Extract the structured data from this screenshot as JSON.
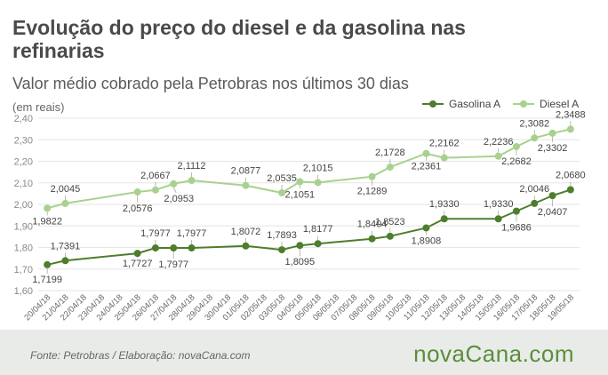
{
  "header": {
    "title": "Evolução do preço do diesel e da gasolina nas refinarias",
    "subtitle": "Valor médio cobrado pela Petrobras nos últimos 30 dias",
    "unit": "(em reais)"
  },
  "colors": {
    "gasolina": "#4e7d2c",
    "diesel": "#a9d18e",
    "grid": "#e6e6e6",
    "text": "#444444"
  },
  "chart_data": {
    "type": "line",
    "ylim": [
      1.6,
      2.4
    ],
    "yticks": [
      "1,60",
      "1,70",
      "1,80",
      "1,90",
      "2,00",
      "2,10",
      "2,20",
      "2,30",
      "2,40"
    ],
    "categories": [
      "20/04/18",
      "21/04/18",
      "22/04/18",
      "23/04/18",
      "24/04/18",
      "25/04/18",
      "26/04/18",
      "27/04/18",
      "28/04/18",
      "29/04/18",
      "30/04/18",
      "01/05/18",
      "02/05/18",
      "03/05/18",
      "04/05/18",
      "05/05/18",
      "06/05/18",
      "07/05/18",
      "08/05/18",
      "09/05/18",
      "10/05/18",
      "11/05/18",
      "12/05/18",
      "13/05/18",
      "14/05/18",
      "15/05/18",
      "16/05/18",
      "17/05/18",
      "18/05/18",
      "19/05/18"
    ],
    "legend_position": "top-right",
    "grid": true,
    "series": [
      {
        "name": "Gasolina A",
        "points": [
          {
            "x": "20/04/18",
            "y": 1.7199,
            "label": "1,7199"
          },
          {
            "x": "21/04/18",
            "y": 1.7391,
            "label": "1,7391"
          },
          {
            "x": "25/04/18",
            "y": 1.7727,
            "label": "1,7727"
          },
          {
            "x": "26/04/18",
            "y": 1.7977,
            "label": "1,7977"
          },
          {
            "x": "27/04/18",
            "y": 1.7977,
            "label": "1,7977"
          },
          {
            "x": "28/04/18",
            "y": 1.7977,
            "label": "1,7977"
          },
          {
            "x": "01/05/18",
            "y": 1.8072,
            "label": "1,8072"
          },
          {
            "x": "03/05/18",
            "y": 1.7893,
            "label": "1,7893"
          },
          {
            "x": "04/05/18",
            "y": 1.8095,
            "label": "1,8095"
          },
          {
            "x": "05/05/18",
            "y": 1.8177,
            "label": "1,8177"
          },
          {
            "x": "08/05/18",
            "y": 1.8404,
            "label": "1,8404"
          },
          {
            "x": "09/05/18",
            "y": 1.8523,
            "label": "1,8523"
          },
          {
            "x": "11/05/18",
            "y": 1.8908,
            "label": "1,8908"
          },
          {
            "x": "12/05/18",
            "y": 1.933,
            "label": "1,9330"
          },
          {
            "x": "15/05/18",
            "y": 1.933,
            "label": "1,9330"
          },
          {
            "x": "16/05/18",
            "y": 1.9686,
            "label": "1,9686"
          },
          {
            "x": "17/05/18",
            "y": 2.0046,
            "label": "2,0046"
          },
          {
            "x": "18/05/18",
            "y": 2.0407,
            "label": "2,0407"
          },
          {
            "x": "19/05/18",
            "y": 2.068,
            "label": "2,0680"
          }
        ]
      },
      {
        "name": "Diesel A",
        "points": [
          {
            "x": "20/04/18",
            "y": 1.9822,
            "label": "1,9822"
          },
          {
            "x": "21/04/18",
            "y": 2.0045,
            "label": "2,0045"
          },
          {
            "x": "25/04/18",
            "y": 2.0576,
            "label": "2,0576"
          },
          {
            "x": "26/04/18",
            "y": 2.0667,
            "label": "2,0667"
          },
          {
            "x": "27/04/18",
            "y": 2.0953,
            "label": "2,0953"
          },
          {
            "x": "28/04/18",
            "y": 2.1112,
            "label": "2,1112"
          },
          {
            "x": "01/05/18",
            "y": 2.0877,
            "label": "2,0877"
          },
          {
            "x": "03/05/18",
            "y": 2.0535,
            "label": "2,0535"
          },
          {
            "x": "04/05/18",
            "y": 2.1051,
            "label": "2,1051"
          },
          {
            "x": "05/05/18",
            "y": 2.1015,
            "label": "2,1015"
          },
          {
            "x": "08/05/18",
            "y": 2.1289,
            "label": "2,1289"
          },
          {
            "x": "09/05/18",
            "y": 2.1728,
            "label": "2,1728"
          },
          {
            "x": "11/05/18",
            "y": 2.2361,
            "label": "2,2361"
          },
          {
            "x": "12/05/18",
            "y": 2.2162,
            "label": "2,2162"
          },
          {
            "x": "15/05/18",
            "y": 2.2236,
            "label": "2,2236"
          },
          {
            "x": "16/05/18",
            "y": 2.2682,
            "label": "2,2682"
          },
          {
            "x": "17/05/18",
            "y": 2.3082,
            "label": "2,3082"
          },
          {
            "x": "18/05/18",
            "y": 2.3302,
            "label": "2,3302"
          },
          {
            "x": "19/05/18",
            "y": 2.3488,
            "label": "2,3488"
          }
        ]
      }
    ]
  },
  "footer": {
    "source": "Fonte:  Petrobras  / Elaboração:  novaCana.com",
    "brand": "novaCana.com"
  }
}
